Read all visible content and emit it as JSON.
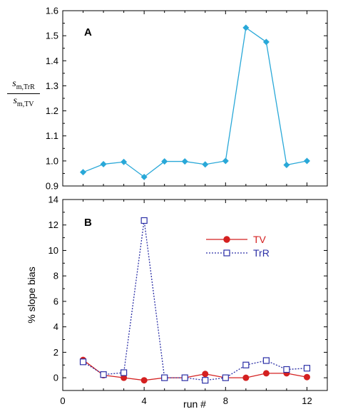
{
  "chart_data": [
    {
      "type": "line",
      "panel_label": "A",
      "ylabel": {
        "numerator_symbol": "s",
        "numerator_subscript": "m,TrR",
        "denominator_symbol": "s",
        "denominator_subscript": "m,TV"
      },
      "xlim": [
        0,
        13
      ],
      "ylim": [
        0.9,
        1.6
      ],
      "xticks": [
        0,
        4,
        8,
        12
      ],
      "yticks": [
        "0.9",
        "1.0",
        "1.1",
        "1.2",
        "1.3",
        "1.4",
        "1.5",
        "1.6"
      ],
      "x_tick_labels_shown": false,
      "series": [
        {
          "color": "#29a8d8",
          "marker": "diamond",
          "x": [
            1,
            2,
            3,
            4,
            5,
            6,
            7,
            8,
            9,
            10,
            11,
            12
          ],
          "values": [
            0.955,
            0.987,
            0.996,
            0.936,
            0.998,
            0.998,
            0.986,
            1.0,
            1.532,
            1.475,
            0.984,
            1.0
          ]
        }
      ]
    },
    {
      "type": "line",
      "panel_label": "B",
      "xlabel": "run #",
      "ylabel": "% slope bias",
      "xlim": [
        0,
        13
      ],
      "ylim": [
        -1,
        14
      ],
      "xticks": [
        "0",
        "4",
        "8",
        "12"
      ],
      "yticks": [
        "0",
        "2",
        "4",
        "6",
        "8",
        "10",
        "12",
        "14"
      ],
      "legend": "top-right",
      "series": [
        {
          "name": "TV",
          "color": "#d42020",
          "marker": "filled-circle",
          "line": "solid",
          "x": [
            1,
            2,
            3,
            4,
            5,
            6,
            7,
            8,
            9,
            10,
            11,
            12
          ],
          "values": [
            1.4,
            0.2,
            0.0,
            -0.2,
            0.0,
            0.0,
            0.3,
            0.0,
            0.0,
            0.35,
            0.35,
            0.05
          ]
        },
        {
          "name": "TrR",
          "color": "#2b2fa6",
          "marker": "open-square",
          "line": "dotted",
          "x": [
            1,
            2,
            3,
            4,
            5,
            6,
            7,
            8,
            9,
            10,
            11,
            12
          ],
          "values": [
            1.25,
            0.25,
            0.4,
            12.35,
            0.0,
            0.0,
            -0.2,
            0.0,
            1.0,
            1.35,
            0.65,
            0.75
          ]
        }
      ]
    }
  ]
}
